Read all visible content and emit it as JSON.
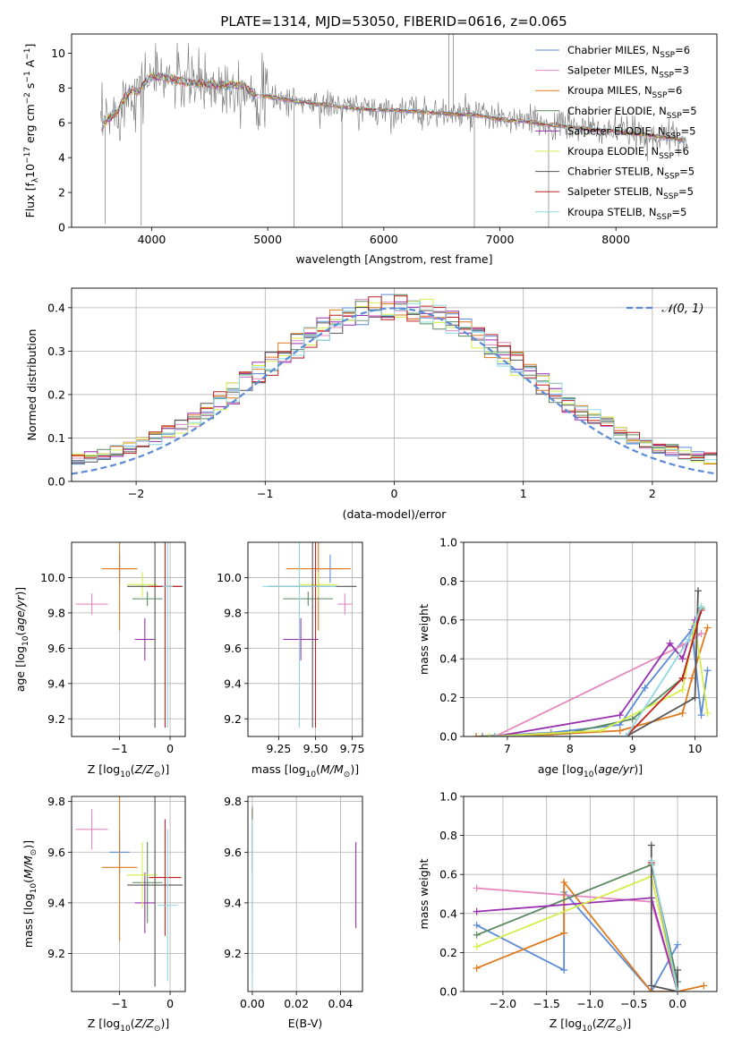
{
  "figure_title": "PLATE=1314, MJD=53050, FIBERID=0616, z=0.065",
  "colors": {
    "chabrier_miles": "#5b8bd6",
    "salpeter_miles": "#e588c0",
    "kroupa_miles": "#e07a1f",
    "chabrier_elodie": "#5a8a5e",
    "salpeter_elodie": "#9a2fb0",
    "kroupa_elodie": "#d4ed4a",
    "chabrier_stelib": "#555555",
    "salpeter_stelib": "#c02020",
    "kroupa_stelib": "#8fd8e0",
    "data": "#777777",
    "grid": "#b0b0b0"
  },
  "chart_data": [
    {
      "type": "line",
      "title": "PLATE=1314, MJD=53050, FIBERID=0616, z=0.065",
      "xlabel": "wavelength [Angstrom, rest frame]",
      "ylabel": "Flux [f_λ 10^-17 erg cm^-2 s^-1 A^-1]",
      "ylabel_parts": [
        "Flux [f",
        "λ",
        "10",
        "−17",
        " erg cm",
        "−2",
        " s",
        "−1",
        " A",
        "−1",
        "]"
      ],
      "xlim": [
        3310,
        8870
      ],
      "ylim": [
        0,
        11.1
      ],
      "xticks": [
        4000,
        5000,
        6000,
        7000,
        8000
      ],
      "yticks": [
        0,
        2,
        4,
        6,
        8,
        10
      ],
      "grid": false,
      "legend_position": "top-right",
      "continuum": {
        "x": [
          3560,
          3620,
          3700,
          3760,
          3820,
          3880,
          3950,
          4000,
          4100,
          4200,
          4300,
          4400,
          4500,
          4600,
          4700,
          4800,
          4900,
          5000,
          5200,
          5400,
          5600,
          5800,
          6000,
          6200,
          6400,
          6600,
          6800,
          7000,
          7200,
          7400,
          7600,
          7800,
          8000,
          8200,
          8400,
          8600
        ],
        "y": [
          5.7,
          6.2,
          6.6,
          7.3,
          7.9,
          7.8,
          8.4,
          8.7,
          8.6,
          8.5,
          8.3,
          8.3,
          8.2,
          8.15,
          8.2,
          8.1,
          7.6,
          7.5,
          7.3,
          7.1,
          6.95,
          6.8,
          6.75,
          6.7,
          6.6,
          6.5,
          6.45,
          6.2,
          6.1,
          5.9,
          5.8,
          5.6,
          5.55,
          5.35,
          5.2,
          5.0
        ]
      },
      "series": [
        {
          "name": "Chabrier MILES, N_SSP=6",
          "label_main": "Chabrier MILES, N",
          "label_sub": "SSP",
          "label_tail": "=6"
        },
        {
          "name": "Salpeter MILES, N_SSP=3",
          "label_main": "Salpeter MILES, N",
          "label_sub": "SSP",
          "label_tail": "=3"
        },
        {
          "name": "Kroupa MILES, N_SSP=6",
          "label_main": "Kroupa MILES, N",
          "label_sub": "SSP",
          "label_tail": "=6"
        },
        {
          "name": "Chabrier ELODIE, N_SSP=5",
          "label_main": "Chabrier ELODIE, N",
          "label_sub": "SSP",
          "label_tail": "=5"
        },
        {
          "name": "Salpeter ELODIE, N_SSP=5",
          "label_main": "Salpeter ELODIE, N",
          "label_sub": "SSP",
          "label_tail": "=5"
        },
        {
          "name": "Kroupa ELODIE, N_SSP=6",
          "label_main": "Kroupa ELODIE, N",
          "label_sub": "SSP",
          "label_tail": "=6"
        },
        {
          "name": "Chabrier STELIB, N_SSP=5",
          "label_main": "Chabrier STELIB, N",
          "label_sub": "SSP",
          "label_tail": "=5"
        },
        {
          "name": "Salpeter STELIB, N_SSP=5",
          "label_main": "Salpeter STELIB, N",
          "label_sub": "SSP",
          "label_tail": "=5"
        },
        {
          "name": "Kroupa STELIB, N_SSP=5",
          "label_main": "Kroupa STELIB, N",
          "label_sub": "SSP",
          "label_tail": "=5"
        }
      ]
    },
    {
      "type": "line",
      "xlabel": "(data-model)/error",
      "ylabel": "Normed distribution",
      "xlim": [
        -2.5,
        2.5
      ],
      "ylim": [
        0,
        0.445
      ],
      "xticks": [
        -2,
        -1,
        0,
        1,
        2
      ],
      "yticks": [
        0.0,
        0.1,
        0.2,
        0.3,
        0.4
      ],
      "grid": true,
      "legend_position": "top-right",
      "legend_label": "𝒩(0, 1)",
      "reference_curve": {
        "name": "N(0,1)",
        "mean": 0,
        "sigma": 1
      },
      "histogram_bins": 50
    },
    {
      "type": "scatter",
      "xlabel": "Z [log10(Z/Z⊙)]",
      "ylabel": "age  [log10(age/yr)]",
      "xlim": [
        -1.95,
        0.3
      ],
      "ylim": [
        9.1,
        10.2
      ],
      "xticks": [
        -1,
        0
      ],
      "yticks": [
        9.2,
        9.4,
        9.6,
        9.8,
        10.0
      ],
      "grid": true,
      "points": [
        {
          "series": "Chabrier MILES",
          "x": -1.0,
          "y": 10.05,
          "xerr": 0.2,
          "yerr": 0.08
        },
        {
          "series": "Salpeter MILES",
          "x": -1.55,
          "y": 9.85,
          "xerr": 0.32,
          "yerr": 0.06
        },
        {
          "series": "Kroupa MILES",
          "x": -1.0,
          "y": 10.05,
          "xerr": 0.35,
          "yerr": 0.35
        },
        {
          "series": "Chabrier ELODIE",
          "x": -0.45,
          "y": 9.88,
          "xerr": 0.3,
          "yerr": 0.04
        },
        {
          "series": "Salpeter ELODIE",
          "x": -0.5,
          "y": 9.65,
          "xerr": 0.2,
          "yerr": 0.12
        },
        {
          "series": "Kroupa ELODIE",
          "x": -0.55,
          "y": 9.96,
          "xerr": 0.3,
          "yerr": 0.07
        },
        {
          "series": "Chabrier STELIB",
          "x": -0.3,
          "y": 9.95,
          "xerr": 0.55,
          "yerr": 0.8
        },
        {
          "series": "Salpeter STELIB",
          "x": -0.1,
          "y": 9.95,
          "xerr": 0.32,
          "yerr": 0.8
        },
        {
          "series": "Kroupa STELIB",
          "x": -0.05,
          "y": 9.95,
          "xerr": 0.1,
          "yerr": 0.8
        }
      ]
    },
    {
      "type": "scatter",
      "xlabel": "mass [log10(M/M⊙)]",
      "xlim": [
        9.04,
        9.82
      ],
      "ylim": [
        9.1,
        10.2
      ],
      "xticks": [
        9.25,
        9.5,
        9.75
      ],
      "yticks": [
        9.2,
        9.4,
        9.6,
        9.8,
        10.0
      ],
      "grid": true,
      "points": [
        {
          "series": "Chabrier MILES",
          "x": 9.6,
          "y": 10.05,
          "xerr": 0.1,
          "yerr": 0.08
        },
        {
          "series": "Salpeter MILES",
          "x": 9.7,
          "y": 9.85,
          "xerr": 0.05,
          "yerr": 0.06
        },
        {
          "series": "Kroupa MILES",
          "x": 9.52,
          "y": 10.05,
          "xerr": 0.22,
          "yerr": 0.35
        },
        {
          "series": "Chabrier ELODIE",
          "x": 9.45,
          "y": 9.88,
          "xerr": 0.17,
          "yerr": 0.04
        },
        {
          "series": "Salpeter ELODIE",
          "x": 9.4,
          "y": 9.65,
          "xerr": 0.12,
          "yerr": 0.12
        },
        {
          "series": "Kroupa ELODIE",
          "x": 9.52,
          "y": 9.96,
          "xerr": 0.13,
          "yerr": 0.07
        },
        {
          "series": "Chabrier STELIB",
          "x": 9.48,
          "y": 9.95,
          "xerr": 0.3,
          "yerr": 0.8
        },
        {
          "series": "Salpeter STELIB",
          "x": 9.5,
          "y": 9.95,
          "xerr": 0.03,
          "yerr": 0.8
        },
        {
          "series": "Kroupa STELIB",
          "x": 9.39,
          "y": 9.95,
          "xerr": 0.25,
          "yerr": 0.8
        }
      ]
    },
    {
      "type": "line",
      "xlabel": "age  [log10(age/yr)]",
      "ylabel": "mass weight",
      "xlim": [
        6.3,
        10.35
      ],
      "ylim": [
        0,
        1.0
      ],
      "xticks": [
        7,
        8,
        9,
        10
      ],
      "yticks": [
        0.0,
        0.2,
        0.4,
        0.6,
        0.8,
        1.0
      ],
      "grid": true,
      "series": [
        {
          "name": "Chabrier MILES",
          "x": [
            6.5,
            7.7,
            8.8,
            9.2,
            9.95,
            10.1,
            10.2
          ],
          "y": [
            0.0,
            0.02,
            0.06,
            0.25,
            0.55,
            0.11,
            0.34
          ]
        },
        {
          "name": "Salpeter MILES",
          "x": [
            6.8,
            9.8,
            10.1
          ],
          "y": [
            0.0,
            0.47,
            0.53
          ]
        },
        {
          "name": "Kroupa MILES",
          "x": [
            6.5,
            7.7,
            8.8,
            9.8,
            9.95,
            10.2
          ],
          "y": [
            0.0,
            0.01,
            0.03,
            0.12,
            0.3,
            0.56
          ]
        },
        {
          "name": "Chabrier ELODIE",
          "x": [
            6.6,
            8.0,
            9.0,
            9.8,
            10.1
          ],
          "y": [
            0.0,
            0.02,
            0.09,
            0.3,
            0.66
          ]
        },
        {
          "name": "Salpeter ELODIE",
          "x": [
            6.8,
            8.8,
            9.6,
            9.8,
            10.0
          ],
          "y": [
            0.0,
            0.11,
            0.48,
            0.4,
            0.6
          ]
        },
        {
          "name": "Kroupa ELODIE",
          "x": [
            6.7,
            8.5,
            9.8,
            10.0,
            10.2
          ],
          "y": [
            0.0,
            0.03,
            0.24,
            0.58,
            0.12
          ]
        },
        {
          "name": "Chabrier STELIB",
          "x": [
            6.8,
            8.9,
            10.0,
            10.05
          ],
          "y": [
            0.0,
            0.0,
            0.2,
            0.75
          ]
        },
        {
          "name": "Salpeter STELIB",
          "x": [
            6.8,
            8.9,
            9.8,
            10.1
          ],
          "y": [
            0.0,
            0.0,
            0.3,
            0.65
          ]
        },
        {
          "name": "Kroupa STELIB",
          "x": [
            6.8,
            8.9,
            9.9,
            10.1
          ],
          "y": [
            0.0,
            0.0,
            0.5,
            0.67
          ]
        }
      ]
    },
    {
      "type": "scatter",
      "xlabel": "Z [log10(Z/Z⊙)]",
      "ylabel": "mass [log10(M/M⊙)]",
      "xlim": [
        -1.95,
        0.3
      ],
      "ylim": [
        9.05,
        9.82
      ],
      "xticks": [
        -1,
        0
      ],
      "yticks": [
        9.2,
        9.4,
        9.6,
        9.8
      ],
      "grid": true,
      "points": [
        {
          "series": "Chabrier MILES",
          "x": -1.0,
          "y": 9.6,
          "xerr": 0.2,
          "yerr": 0.08
        },
        {
          "series": "Salpeter MILES",
          "x": -1.55,
          "y": 9.69,
          "xerr": 0.32,
          "yerr": 0.08
        },
        {
          "series": "Kroupa MILES",
          "x": -1.0,
          "y": 9.54,
          "xerr": 0.35,
          "yerr": 0.29
        },
        {
          "series": "Chabrier ELODIE",
          "x": -0.45,
          "y": 9.48,
          "xerr": 0.3,
          "yerr": 0.16
        },
        {
          "series": "Salpeter ELODIE",
          "x": -0.5,
          "y": 9.4,
          "xerr": 0.2,
          "yerr": 0.12
        },
        {
          "series": "Kroupa ELODIE",
          "x": -0.55,
          "y": 9.51,
          "xerr": 0.3,
          "yerr": 0.13
        },
        {
          "series": "Chabrier STELIB",
          "x": -0.3,
          "y": 9.47,
          "xerr": 0.55,
          "yerr": 0.4
        },
        {
          "series": "Salpeter STELIB",
          "x": -0.1,
          "y": 9.5,
          "xerr": 0.32,
          "yerr": 0.23
        },
        {
          "series": "Kroupa STELIB",
          "x": -0.05,
          "y": 9.39,
          "xerr": 0.2,
          "yerr": 0.3
        }
      ]
    },
    {
      "type": "scatter",
      "xlabel": "E(B-V)",
      "xlim": [
        -0.002,
        0.05
      ],
      "ylim": [
        9.05,
        9.82
      ],
      "xticks": [
        0.0,
        0.02,
        0.04
      ],
      "yticks": [
        9.2,
        9.4,
        9.6,
        9.8
      ],
      "grid": true,
      "points": [
        {
          "series": "Chabrier MILES",
          "x": 0.0,
          "y": 9.6,
          "yerr": 0.08
        },
        {
          "series": "Salpeter STELIB",
          "x": 0.0,
          "y": 9.65,
          "yerr": 0.12
        },
        {
          "series": "Chabrier ELODIE",
          "x": 0.0,
          "y": 9.45,
          "yerr": 0.33
        },
        {
          "series": "Kroupa STELIB",
          "x": 0.0,
          "y": 9.4,
          "yerr": 0.33
        },
        {
          "series": "Salpeter ELODIE",
          "x": 0.047,
          "y": 9.47,
          "yerr": 0.17
        }
      ]
    },
    {
      "type": "line",
      "xlabel": "Z [log10(Z/Z⊙)]",
      "ylabel": "mass weight",
      "xlim": [
        -2.45,
        0.45
      ],
      "ylim": [
        0,
        1.0
      ],
      "xticks": [
        -2.0,
        -1.5,
        -1.0,
        -0.5,
        0.0
      ],
      "yticks": [
        0.0,
        0.2,
        0.4,
        0.6,
        0.8,
        1.0
      ],
      "grid": true,
      "series": [
        {
          "name": "Chabrier MILES",
          "x": [
            -2.3,
            -1.3,
            -1.3,
            -0.3,
            0.0
          ],
          "y": [
            0.34,
            0.11,
            0.51,
            0.0,
            0.24
          ]
        },
        {
          "name": "Salpeter MILES",
          "x": [
            -2.3,
            -0.3,
            0.0
          ],
          "y": [
            0.53,
            0.46,
            0.0
          ]
        },
        {
          "name": "Kroupa MILES",
          "x": [
            -2.3,
            -1.3,
            -1.3,
            -0.3,
            0.0,
            0.3
          ],
          "y": [
            0.12,
            0.3,
            0.56,
            0.0,
            0.0,
            0.03
          ]
        },
        {
          "name": "Chabrier ELODIE",
          "x": [
            -2.3,
            -0.3,
            0.0
          ],
          "y": [
            0.29,
            0.65,
            0.05
          ]
        },
        {
          "name": "Salpeter ELODIE",
          "x": [
            -2.3,
            -0.3,
            0.0
          ],
          "y": [
            0.41,
            0.48,
            0.0
          ]
        },
        {
          "name": "Kroupa ELODIE",
          "x": [
            -2.3,
            -0.3,
            0.0
          ],
          "y": [
            0.23,
            0.59,
            0.0
          ]
        },
        {
          "name": "Chabrier STELIB",
          "x": [
            -0.3,
            -0.3,
            0.0,
            0.0
          ],
          "y": [
            0.75,
            0.03,
            0.0,
            0.11
          ]
        },
        {
          "name": "Salpeter STELIB",
          "x": [
            -0.3,
            0.0
          ],
          "y": [
            0.66,
            0.0
          ]
        },
        {
          "name": "Kroupa STELIB",
          "x": [
            -0.3,
            0.0
          ],
          "y": [
            0.67,
            0.0
          ]
        }
      ]
    }
  ]
}
